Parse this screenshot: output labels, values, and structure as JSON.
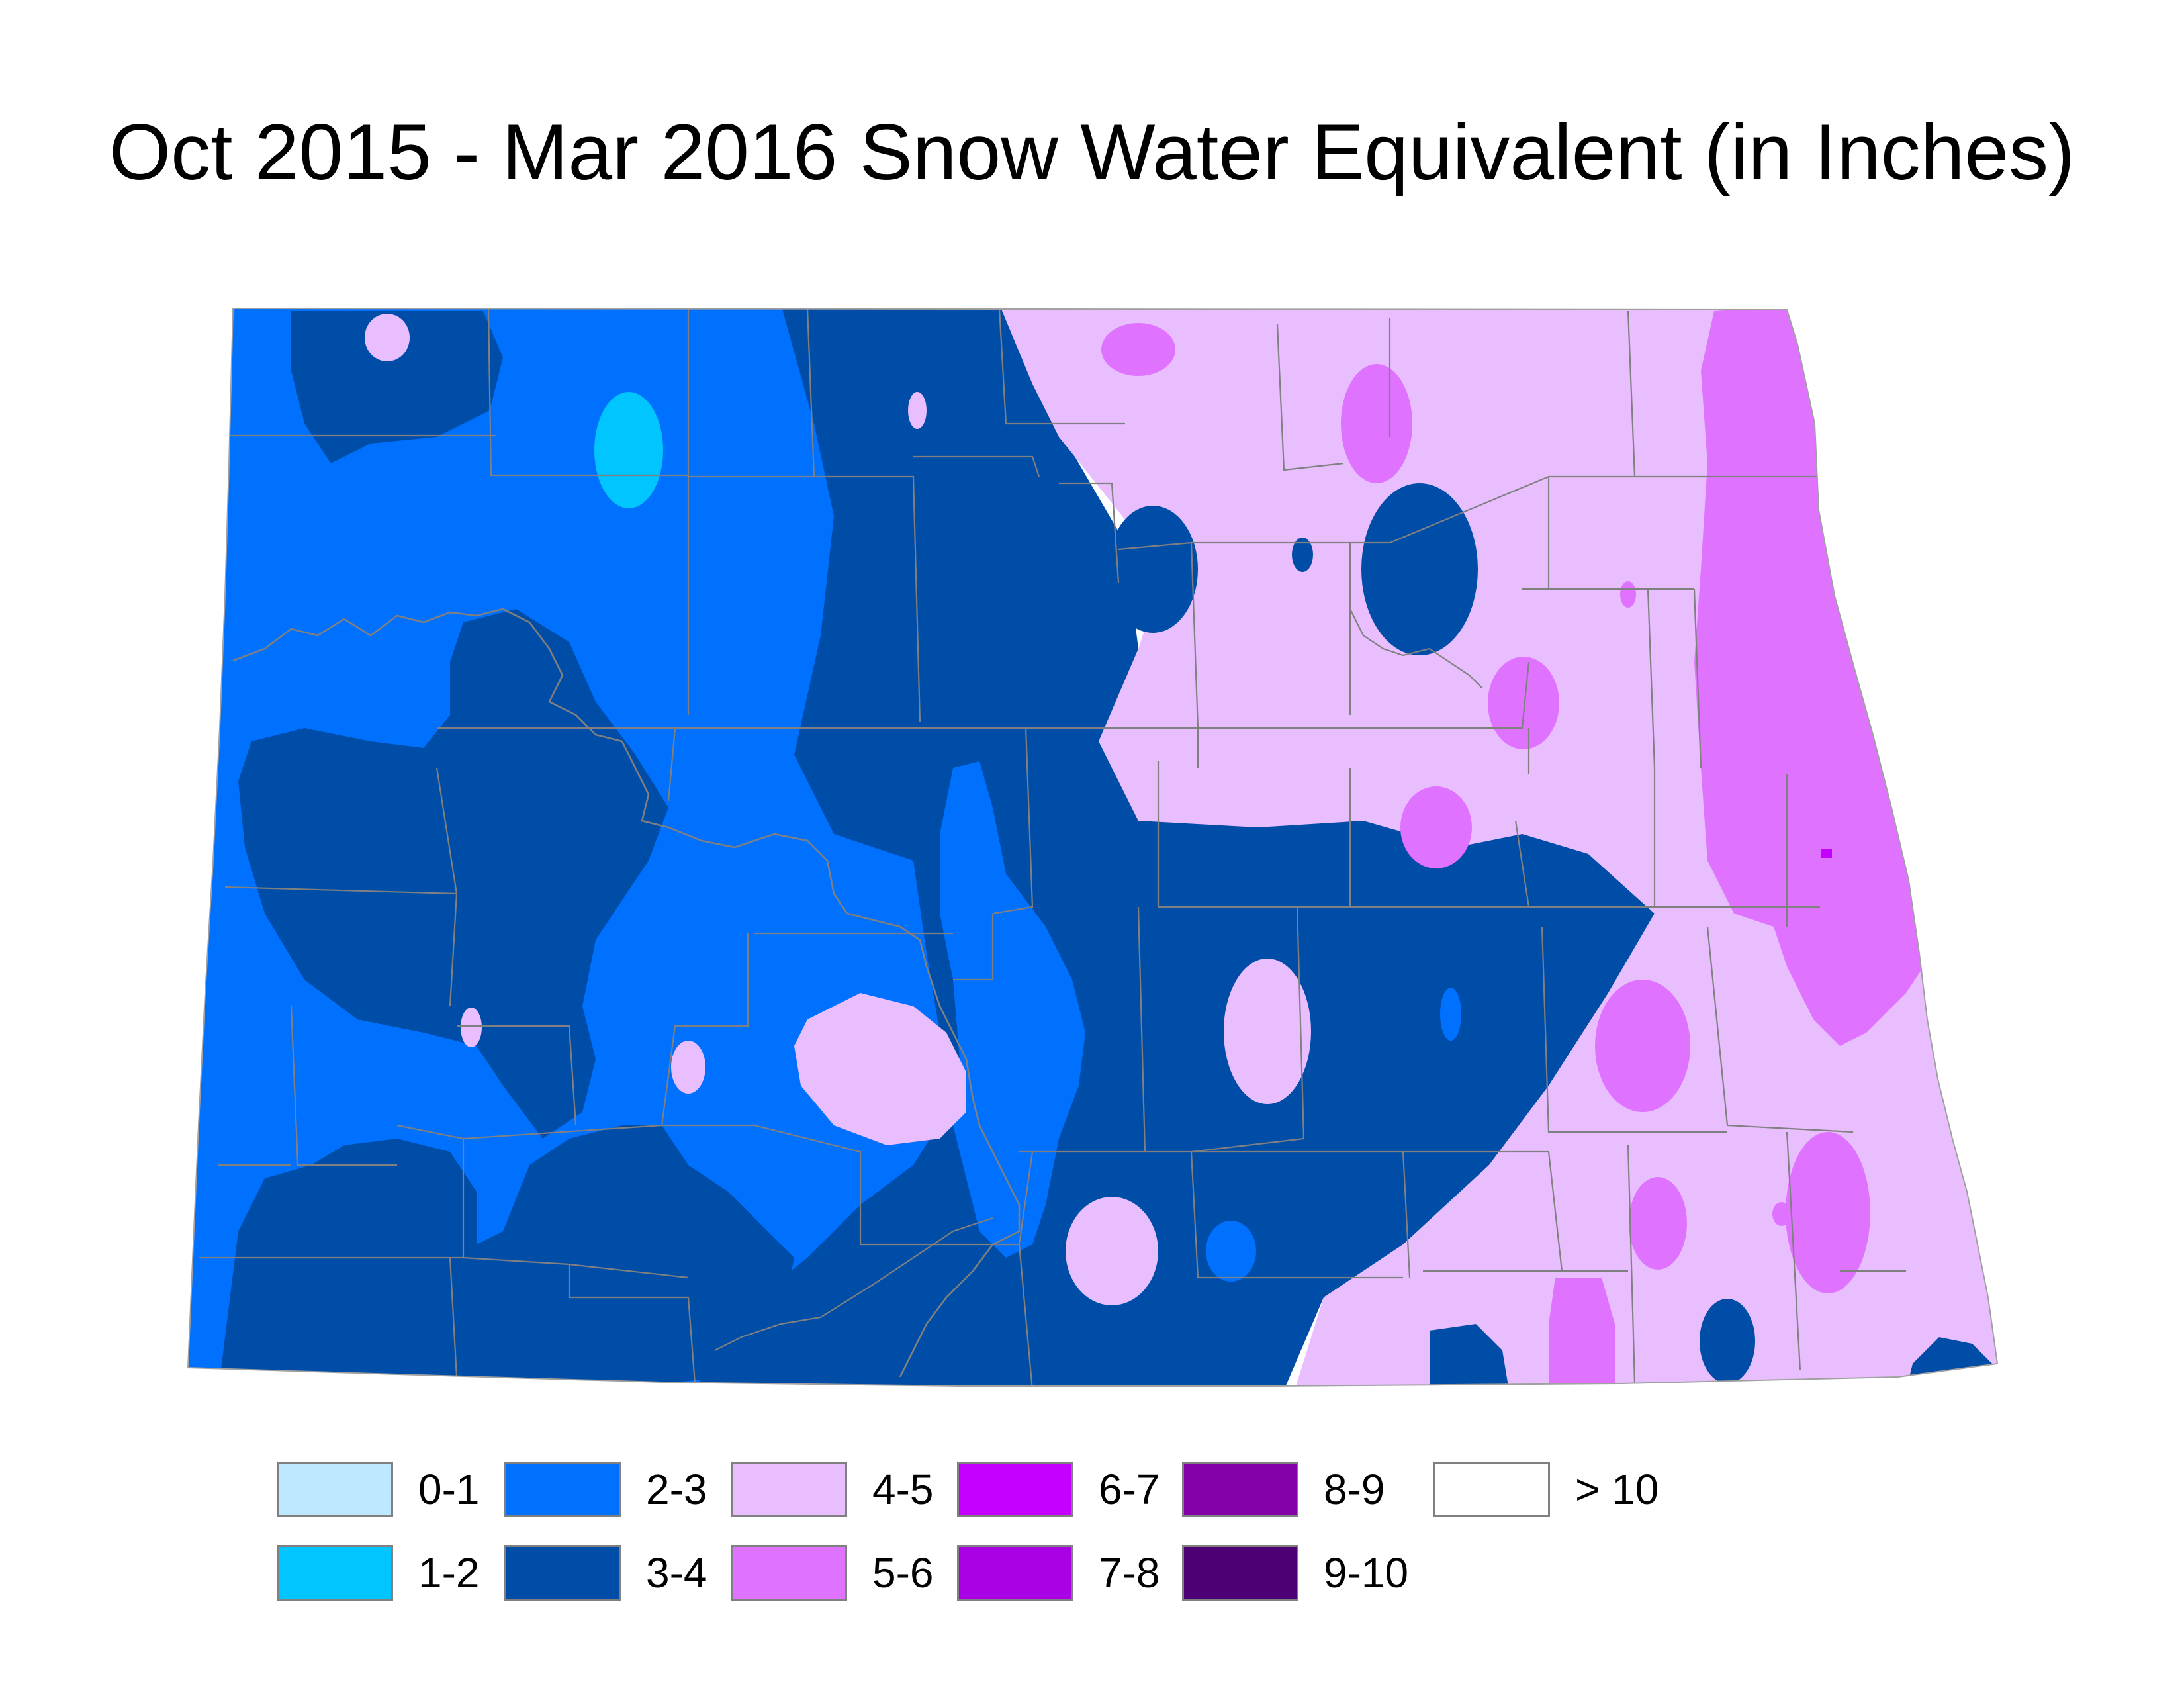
{
  "title": "Oct 2015 - Mar 2016 Snow Water Equivalent (in Inches)",
  "palette": {
    "c0_1": "#bee8ff",
    "c1_2": "#00c5ff",
    "c2_3": "#0070ff",
    "c3_4": "#004da8",
    "c4_5": "#e8beff",
    "c5_6": "#df73ff",
    "c6_7": "#c500ff",
    "c7_8": "#a900e6",
    "c8_9": "#8400a8",
    "c9_10": "#4c0073",
    "c10p": "#ffffff",
    "boundary": "#808080"
  },
  "legend": [
    {
      "label": "0-1",
      "color": "#bee8ff"
    },
    {
      "label": "1-2",
      "color": "#00c5ff"
    },
    {
      "label": "2-3",
      "color": "#0070ff"
    },
    {
      "label": "3-4",
      "color": "#004da8"
    },
    {
      "label": "4-5",
      "color": "#e8beff"
    },
    {
      "label": "5-6",
      "color": "#df73ff"
    },
    {
      "label": "6-7",
      "color": "#c500ff"
    },
    {
      "label": "7-8",
      "color": "#a900e6"
    },
    {
      "label": "8-9",
      "color": "#8400a8"
    },
    {
      "label": "9-10",
      "color": "#4c0073"
    },
    {
      "label": "> 10",
      "color": "#ffffff"
    }
  ]
}
